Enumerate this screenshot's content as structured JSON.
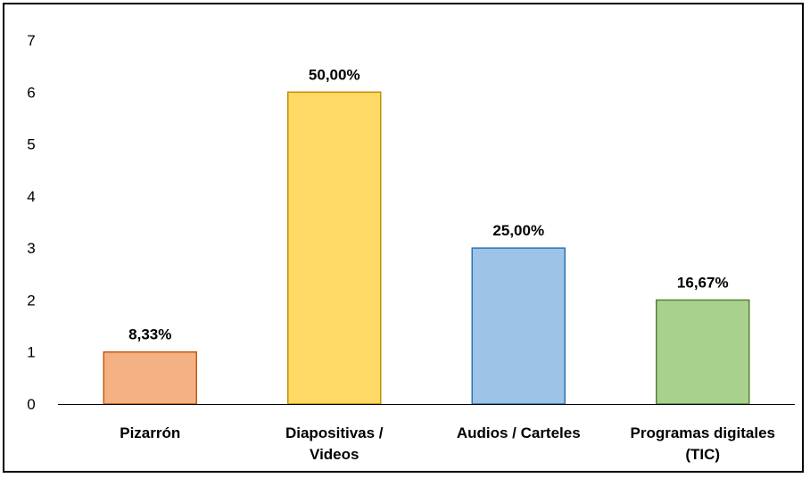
{
  "chart_data": {
    "type": "bar",
    "categories": [
      [
        "Pizarrón"
      ],
      [
        "Diapositivas /",
        "Videos"
      ],
      [
        "Audios / Carteles"
      ],
      [
        "Programas digitales",
        "(TIC)"
      ]
    ],
    "values": [
      1,
      6,
      3,
      2
    ],
    "data_labels": [
      "8,33%",
      "50,00%",
      "25,00%",
      "16,67%"
    ],
    "colors": {
      "fill": [
        "#F4B183",
        "#FFD966",
        "#9DC3E6",
        "#A9D18E"
      ],
      "stroke": [
        "#C55A11",
        "#BF9000",
        "#2E75B6",
        "#548235"
      ]
    },
    "y_ticks": [
      "0",
      "1",
      "2",
      "3",
      "4",
      "5",
      "6",
      "7"
    ],
    "ylim": [
      0,
      7
    ],
    "grid": false,
    "legend": "none"
  }
}
